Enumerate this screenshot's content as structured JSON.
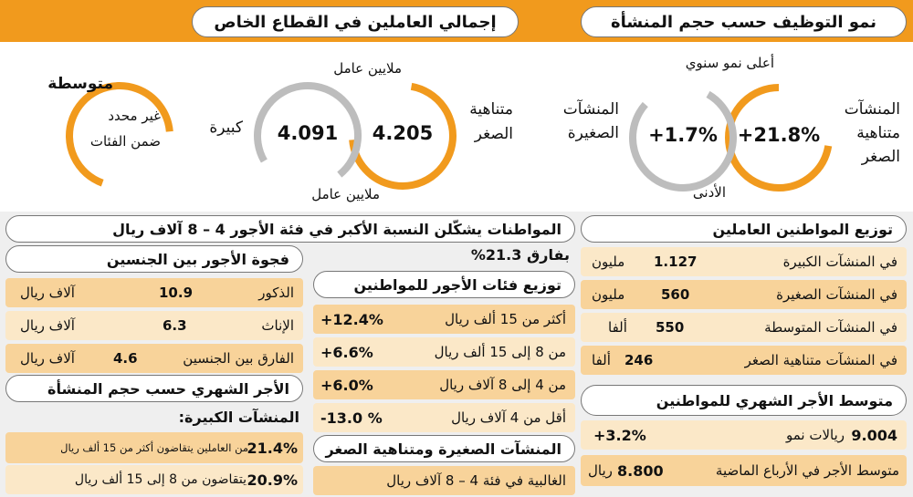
{
  "growth": {
    "title": "نمو التوظيف حسب حجم المنشأة",
    "micro_label_1": "المنشآت",
    "micro_label_2": "متناهية",
    "micro_label_3": "الصغر",
    "micro_value": "+21.8%",
    "small_label_1": "المنشآت",
    "small_label_2": "الصغيرة",
    "small_value": "+1.7%",
    "highest": "أعلى نمو سنوي",
    "lowest": "الأدنى",
    "micro_growth_pct": 21.8,
    "small_growth_pct": 1.7
  },
  "private_total": {
    "title": "إجمالي العاملين في القطاع الخاص",
    "unit_top": "ملايين عامل",
    "unit_bottom": "ملايين عامل",
    "micro_label_1": "متناهية",
    "micro_label_2": "الصغر",
    "micro_value": "4.205",
    "large_label": "كبيرة",
    "large_value": "4.091",
    "medium_label": "متوسطة",
    "medium_note_1": "غير محدد",
    "medium_note_2": "ضمن الفئات"
  },
  "distribution": {
    "title": "توزيع المواطنين العاملين",
    "rows": [
      {
        "label": "في المنشآت الكبيرة",
        "value": "1.127",
        "unit": "مليون"
      },
      {
        "label": "في المنشآت الصغيرة",
        "value": "560",
        "unit": "مليون"
      },
      {
        "label": "في المنشآت  المتوسطة",
        "value": "550",
        "unit": "ألفا"
      },
      {
        "label": "في المنشآت متناهية الصغر",
        "value": "246",
        "unit": "ألفا"
      }
    ]
  },
  "avg_wage": {
    "title": "متوسط الأجر الشهري للمواطنين",
    "value": "9.004",
    "value_unit": "ريالات نمو",
    "growth": "+3.2%",
    "prev_label": "متوسط الأجر في الأرباع الماضية",
    "prev_value": "8.800",
    "prev_unit": "ريال"
  },
  "female_share": {
    "title": "المواطنات يشكّلن النسبة الأكبر في فئة الأجور 4 – 8 آلاف ريال",
    "diff": "بفارق 21.3%"
  },
  "wage_bands": {
    "title": "توزيع فئات الأجور للمواطنين",
    "rows": [
      {
        "label": "أكثر من 15 ألف ريال",
        "value": "+12.4%"
      },
      {
        "label": "من 8 إلى 15 ألف ريال",
        "value": "+6.6%"
      },
      {
        "label": "من 4 إلى 8 آلاف ريال",
        "value": "+6.0%"
      },
      {
        "label": "أقل من 4 آلاف ريال",
        "value": "-13.0 %"
      }
    ]
  },
  "small_micro": {
    "title": "المنشآت الصغيرة ومتناهية الصغر",
    "text": "الغالبية في فئة 4 – 8 آلاف ريال"
  },
  "gender_gap": {
    "title": "فجوة الأجور بين الجنسين",
    "rows": [
      {
        "label": "الذكور",
        "value": "10.9",
        "unit": "آلاف ريال"
      },
      {
        "label": "الإناث",
        "value": "6.3",
        "unit": "آلاف ريال"
      },
      {
        "label": "الفارق بين الجنسين",
        "value": "4.6",
        "unit": "آلاف ريال"
      }
    ]
  },
  "monthly_wage_size": {
    "title": "الأجر الشهري حسب حجم المنشأة",
    "subtitle": "المنشآت الكبيرة:",
    "rows": [
      {
        "value": "21.4%",
        "text": "من العاملين يتقاضون أكثر من 15 ألف ريال"
      },
      {
        "value": "20.9%",
        "text": "يتقاضون من 8 إلى 15 ألف ريال"
      }
    ]
  },
  "colors": {
    "orange": "#f19a1d",
    "gray_ring": "#bdbdbd",
    "peach": "#f8d39a",
    "cream": "#fbe8c8"
  }
}
